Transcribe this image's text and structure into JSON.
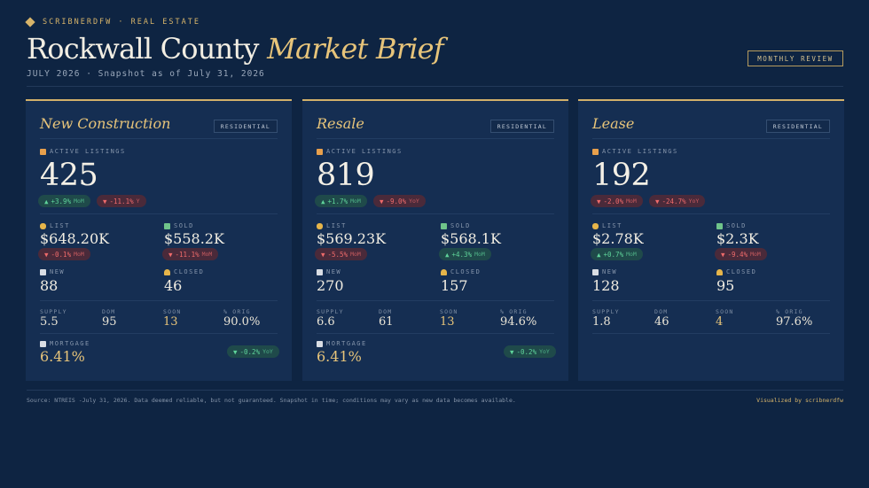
{
  "header": {
    "brand": "SCRIBNERDFW · REAL ESTATE",
    "title_main": "Rockwall County",
    "title_accent": "Market Brief",
    "subtitle": "JULY 2026 · Snapshot as of July 31, 2026",
    "review_button": "MONTHLY REVIEW"
  },
  "labels": {
    "active_listings": "ACTIVE LISTINGS",
    "list": "LIST",
    "sold": "SOLD",
    "new": "NEW",
    "closed": "CLOSED",
    "supply": "SUPPLY",
    "dom": "DOM",
    "soon": "SOON",
    "pct_orig": "% ORIG",
    "mortgage": "MORTGAGE"
  },
  "cards": [
    {
      "title": "New Construction",
      "tag": "RESIDENTIAL",
      "active": "425",
      "active_mom": {
        "dir": "up",
        "arrow": "▲",
        "value": "+3.9%",
        "unit": "MoM"
      },
      "active_yoy": {
        "dir": "down",
        "arrow": "▼",
        "value": "-11.1%",
        "unit": "Y"
      },
      "list_price": "$648.20K",
      "list_chg": {
        "dir": "down",
        "arrow": "▼",
        "value": "-0.1%",
        "unit": "MoM"
      },
      "sold_price": "$558.2K",
      "sold_chg": {
        "dir": "down",
        "arrow": "▼",
        "value": "-11.1%",
        "unit": "MoM"
      },
      "new": "88",
      "closed": "46",
      "supply": "5.5",
      "dom": "95",
      "soon": "13",
      "pct_orig": "90.0%",
      "mortgage": "6.41%",
      "mortgage_chg": {
        "dir": "up",
        "arrow": "▼",
        "value": "-0.2%",
        "unit": "YoY"
      }
    },
    {
      "title": "Resale",
      "tag": "RESIDENTIAL",
      "active": "819",
      "active_mom": {
        "dir": "up",
        "arrow": "▲",
        "value": "+1.7%",
        "unit": "MoM"
      },
      "active_yoy": {
        "dir": "down",
        "arrow": "▼",
        "value": "-9.0%",
        "unit": "YoY"
      },
      "list_price": "$569.23K",
      "list_chg": {
        "dir": "down",
        "arrow": "▼",
        "value": "-5.5%",
        "unit": "MoM"
      },
      "sold_price": "$568.1K",
      "sold_chg": {
        "dir": "up",
        "arrow": "▲",
        "value": "+4.3%",
        "unit": "MoM"
      },
      "new": "270",
      "closed": "157",
      "supply": "6.6",
      "dom": "61",
      "soon": "13",
      "pct_orig": "94.6%",
      "mortgage": "6.41%",
      "mortgage_chg": {
        "dir": "up",
        "arrow": "▼",
        "value": "-0.2%",
        "unit": "YoY"
      }
    },
    {
      "title": "Lease",
      "tag": "RESIDENTIAL",
      "active": "192",
      "active_mom": {
        "dir": "down",
        "arrow": "▼",
        "value": "-2.0%",
        "unit": "MoM"
      },
      "active_yoy": {
        "dir": "down",
        "arrow": "▼",
        "value": "-24.7%",
        "unit": "YoY"
      },
      "list_price": "$2.78K",
      "list_chg": {
        "dir": "up",
        "arrow": "▲",
        "value": "+0.7%",
        "unit": "MoM"
      },
      "sold_price": "$2.3K",
      "sold_chg": {
        "dir": "down",
        "arrow": "▼",
        "value": "-9.4%",
        "unit": "MoM"
      },
      "new": "128",
      "closed": "95",
      "supply": "1.8",
      "dom": "46",
      "soon": "4",
      "pct_orig": "97.6%"
    }
  ],
  "footer": {
    "source": "Source: NTREIS -July 31, 2026. Data deemed reliable, but not guaranteed. Snapshot in time; conditions may vary as new data becomes available.",
    "credit": "Visualized by scribnerdfw"
  },
  "colors": {
    "background": "#0e2442",
    "card": "#152e52",
    "accent_gold": "#e7c47a",
    "up_green": "#5fd39a",
    "down_red": "#ef6b6b"
  }
}
